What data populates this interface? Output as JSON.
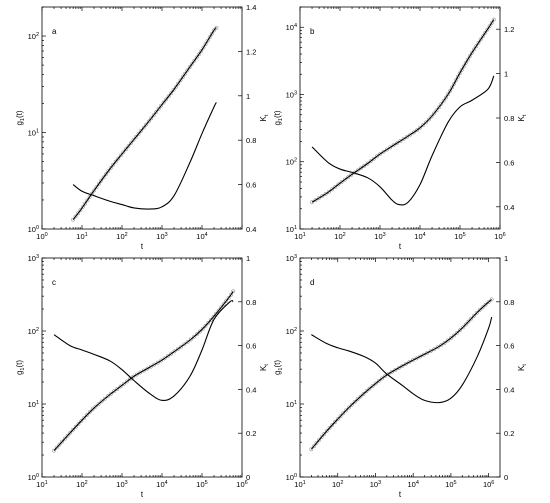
{
  "chart_data": [
    {
      "type": "line",
      "panel_label": "a",
      "xlabel": "t",
      "ylabel_left": "g",
      "ylabel_left_sub": "1",
      "ylabel_left_suffix": "(t)",
      "ylabel_right": "K",
      "ylabel_right_sub": "t",
      "x_scale": "log",
      "xlim": [
        1,
        100000
      ],
      "xticks": [
        {
          "v": 1,
          "e": "0"
        },
        {
          "v": 10,
          "e": "1"
        },
        {
          "v": 100,
          "e": "2"
        },
        {
          "v": 1000,
          "e": "3"
        },
        {
          "v": 10000,
          "e": "4"
        }
      ],
      "y_left_scale": "log",
      "y_left_lim": [
        1,
        200
      ],
      "y_left_ticks": [
        {
          "v": 1,
          "e": "0"
        },
        {
          "v": 10,
          "e": "1"
        },
        {
          "v": 100,
          "e": "2"
        }
      ],
      "y_right_lim": [
        0.4,
        1.4
      ],
      "y_right_ticks": [
        "0.4",
        "0.6",
        "0.8",
        "1",
        "1.2",
        "1.4"
      ],
      "series": [
        {
          "axis": "left",
          "markers": true,
          "x": [
            6,
            10,
            20,
            50,
            100,
            200,
            500,
            1000,
            2000,
            5000,
            10000,
            20000,
            23000
          ],
          "y": [
            1.25,
            1.65,
            2.5,
            4.2,
            6.0,
            8.5,
            13.5,
            19.5,
            28,
            48,
            72,
            115,
            122
          ]
        },
        {
          "axis": "right",
          "markers": false,
          "x": [
            6,
            10,
            20,
            50,
            100,
            200,
            500,
            1000,
            2000,
            5000,
            10000,
            20000,
            23000
          ],
          "y": [
            0.6,
            0.57,
            0.55,
            0.525,
            0.51,
            0.495,
            0.49,
            0.5,
            0.55,
            0.7,
            0.83,
            0.95,
            0.97
          ]
        }
      ]
    },
    {
      "type": "line",
      "panel_label": "b",
      "xlabel": "t",
      "ylabel_left": "g",
      "ylabel_left_sub": "1",
      "ylabel_left_suffix": "(t)",
      "ylabel_right": "K",
      "ylabel_right_sub": "t",
      "x_scale": "log",
      "xlim": [
        10,
        1000000
      ],
      "xticks": [
        {
          "v": 10,
          "e": "1"
        },
        {
          "v": 100,
          "e": "2"
        },
        {
          "v": 1000,
          "e": "3"
        },
        {
          "v": 10000,
          "e": "4"
        },
        {
          "v": 100000,
          "e": "5"
        },
        {
          "v": 1000000,
          "e": "6"
        }
      ],
      "y_left_scale": "log",
      "y_left_lim": [
        10,
        20000
      ],
      "y_left_ticks": [
        {
          "v": 10,
          "e": "1"
        },
        {
          "v": 100,
          "e": "2"
        },
        {
          "v": 1000,
          "e": "3"
        },
        {
          "v": 10000,
          "e": "4"
        }
      ],
      "y_right_lim": [
        0.3,
        1.3
      ],
      "y_right_ticks": [
        "0.4",
        "0.6",
        "0.8",
        "1",
        "1.2"
      ],
      "series": [
        {
          "axis": "left",
          "markers": true,
          "x": [
            20,
            50,
            100,
            200,
            500,
            1000,
            2000,
            5000,
            10000,
            20000,
            50000,
            100000,
            200000,
            500000,
            700000
          ],
          "y": [
            25,
            35,
            48,
            65,
            95,
            130,
            170,
            240,
            320,
            480,
            1000,
            2100,
            4200,
            9500,
            13000
          ]
        },
        {
          "axis": "right",
          "markers": false,
          "x": [
            20,
            50,
            100,
            200,
            500,
            1000,
            2000,
            3000,
            5000,
            10000,
            20000,
            50000,
            100000,
            200000,
            500000,
            700000
          ],
          "y": [
            0.67,
            0.6,
            0.57,
            0.555,
            0.53,
            0.49,
            0.43,
            0.41,
            0.42,
            0.5,
            0.63,
            0.78,
            0.85,
            0.88,
            0.93,
            0.99
          ]
        }
      ]
    },
    {
      "type": "line",
      "panel_label": "c",
      "xlabel": "t",
      "ylabel_left": "g",
      "ylabel_left_sub": "1",
      "ylabel_left_suffix": "(t)",
      "ylabel_right": "K",
      "ylabel_right_sub": "t",
      "x_scale": "log",
      "xlim": [
        10,
        1000000
      ],
      "xticks": [
        {
          "v": 10,
          "e": "1"
        },
        {
          "v": 100,
          "e": "2"
        },
        {
          "v": 1000,
          "e": "3"
        },
        {
          "v": 10000,
          "e": "4"
        },
        {
          "v": 100000,
          "e": "5"
        },
        {
          "v": 1000000,
          "e": "6"
        }
      ],
      "y_left_scale": "log",
      "y_left_lim": [
        1,
        1000
      ],
      "y_left_ticks": [
        {
          "v": 1,
          "e": "0"
        },
        {
          "v": 10,
          "e": "1"
        },
        {
          "v": 100,
          "e": "2"
        },
        {
          "v": 1000,
          "e": "3"
        }
      ],
      "y_right_lim": [
        0,
        1
      ],
      "y_right_ticks": [
        "0",
        "0.2",
        "0.4",
        "0.6",
        "0.8",
        "1"
      ],
      "series": [
        {
          "axis": "left",
          "markers": true,
          "x": [
            20,
            50,
            100,
            200,
            500,
            1000,
            2000,
            5000,
            10000,
            20000,
            50000,
            100000,
            200000,
            500000,
            600000
          ],
          "y": [
            2.3,
            4.0,
            6.0,
            8.8,
            13.5,
            18,
            24,
            32,
            40,
            52,
            75,
            105,
            160,
            300,
            350
          ]
        },
        {
          "axis": "right",
          "markers": false,
          "x": [
            20,
            50,
            100,
            200,
            500,
            1000,
            2000,
            5000,
            10000,
            20000,
            50000,
            100000,
            200000,
            500000,
            600000
          ],
          "y": [
            0.65,
            0.6,
            0.58,
            0.56,
            0.53,
            0.49,
            0.44,
            0.38,
            0.35,
            0.37,
            0.46,
            0.58,
            0.72,
            0.8,
            0.8
          ]
        }
      ]
    },
    {
      "type": "line",
      "panel_label": "d",
      "xlabel": "t",
      "ylabel_left": "g",
      "ylabel_left_sub": "1",
      "ylabel_left_suffix": "(t)",
      "ylabel_right": "K",
      "ylabel_right_sub": "t",
      "x_scale": "log",
      "xlim": [
        10,
        2000000
      ],
      "xticks": [
        {
          "v": 10,
          "e": "1"
        },
        {
          "v": 100,
          "e": "2"
        },
        {
          "v": 1000,
          "e": "3"
        },
        {
          "v": 10000,
          "e": "4"
        },
        {
          "v": 100000,
          "e": "5"
        },
        {
          "v": 1000000,
          "e": "6"
        }
      ],
      "y_left_scale": "log",
      "y_left_lim": [
        1,
        1000
      ],
      "y_left_ticks": [
        {
          "v": 1,
          "e": "0"
        },
        {
          "v": 10,
          "e": "1"
        },
        {
          "v": 100,
          "e": "2"
        },
        {
          "v": 1000,
          "e": "3"
        }
      ],
      "y_right_lim": [
        0,
        1
      ],
      "y_right_ticks": [
        "0",
        "0.2",
        "0.4",
        "0.6",
        "0.8",
        "1"
      ],
      "series": [
        {
          "axis": "left",
          "markers": true,
          "x": [
            20,
            50,
            100,
            200,
            500,
            1000,
            2000,
            5000,
            10000,
            20000,
            50000,
            100000,
            200000,
            500000,
            1000000,
            1200000
          ],
          "y": [
            2.4,
            4.2,
            6.2,
            9.0,
            14,
            19,
            25,
            33,
            40,
            48,
            62,
            80,
            110,
            180,
            250,
            270
          ]
        },
        {
          "axis": "right",
          "markers": false,
          "x": [
            20,
            50,
            100,
            200,
            500,
            1000,
            2000,
            5000,
            10000,
            20000,
            50000,
            100000,
            200000,
            500000,
            1000000,
            1200000
          ],
          "y": [
            0.65,
            0.61,
            0.59,
            0.575,
            0.55,
            0.52,
            0.47,
            0.42,
            0.38,
            0.35,
            0.34,
            0.36,
            0.42,
            0.55,
            0.68,
            0.73
          ]
        }
      ]
    }
  ]
}
